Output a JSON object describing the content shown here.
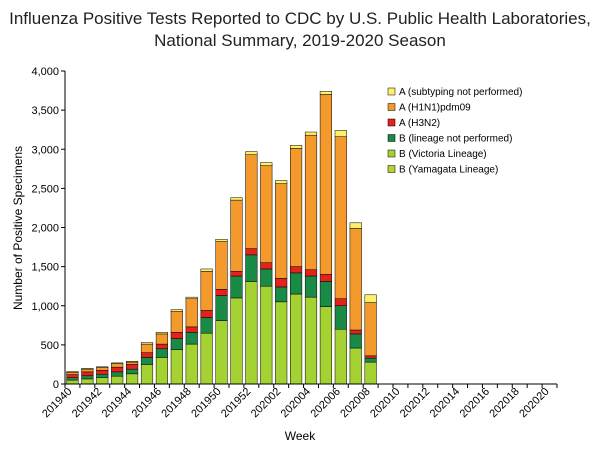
{
  "chart_data": {
    "type": "bar",
    "stacked": true,
    "title_lines": [
      "Influenza Positive Tests Reported to CDC by U.S. Public Health Laboratories,",
      "National Summary, 2019-2020 Season"
    ],
    "xlabel": "Week",
    "ylabel": "Number of Positive Specimens",
    "ylim": [
      0,
      4000
    ],
    "yticks": [
      0,
      500,
      1000,
      1500,
      2000,
      2500,
      3000,
      3500,
      4000
    ],
    "ytick_labels": [
      "0",
      "500",
      "1,000",
      "1,500",
      "2,000",
      "2,500",
      "3,000",
      "3,500",
      "4,000"
    ],
    "categories": [
      "201940",
      "201941",
      "201942",
      "201943",
      "201944",
      "201945",
      "201946",
      "201947",
      "201948",
      "201949",
      "201950",
      "201951",
      "201952",
      "202001",
      "202002",
      "202003",
      "202004",
      "202005",
      "202006",
      "202007",
      "202008",
      "202009",
      "202010",
      "202011",
      "202012",
      "202013",
      "202014",
      "202015",
      "202016",
      "202017",
      "202018",
      "202019",
      "202020"
    ],
    "xtick_labels": [
      "201940",
      "201942",
      "201944",
      "201946",
      "201948",
      "201950",
      "201952",
      "202002",
      "202004",
      "202006",
      "202008",
      "202010",
      "202012",
      "202014",
      "202016",
      "202018",
      "202020"
    ],
    "legend_position": "top-right",
    "series": [
      {
        "name": "B (Yamagata Lineage)",
        "color": "#b5d334",
        "values": [
          0,
          0,
          0,
          0,
          0,
          0,
          0,
          0,
          0,
          0,
          0,
          0,
          0,
          0,
          0,
          0,
          0,
          0,
          0,
          0,
          0,
          0,
          0,
          0,
          0,
          0,
          0,
          0,
          0,
          0,
          0,
          0,
          0
        ]
      },
      {
        "name": "B (Victoria Lineage)",
        "color": "#a4d233",
        "values": [
          50,
          65,
          80,
          100,
          130,
          250,
          340,
          440,
          510,
          650,
          810,
          1100,
          1310,
          1250,
          1050,
          1150,
          1110,
          990,
          700,
          460,
          280,
          0,
          0,
          0,
          0,
          0,
          0,
          0,
          0,
          0,
          0,
          0,
          0
        ]
      },
      {
        "name": "B (lineage not performed)",
        "color": "#1a8a47",
        "values": [
          30,
          40,
          45,
          55,
          60,
          90,
          110,
          140,
          150,
          200,
          320,
          280,
          340,
          220,
          190,
          270,
          270,
          320,
          300,
          180,
          50,
          0,
          0,
          0,
          0,
          0,
          0,
          0,
          0,
          0,
          0,
          0,
          0
        ]
      },
      {
        "name": "A (H3N2)",
        "color": "#e4211a",
        "values": [
          40,
          50,
          50,
          60,
          60,
          60,
          60,
          80,
          70,
          90,
          80,
          60,
          80,
          80,
          110,
          80,
          80,
          90,
          90,
          50,
          30,
          0,
          0,
          0,
          0,
          0,
          0,
          0,
          0,
          0,
          0,
          0,
          0
        ]
      },
      {
        "name": "A (H1N1)pdm09",
        "color": "#f49a2c",
        "values": [
          30,
          35,
          35,
          45,
          30,
          110,
          130,
          270,
          360,
          500,
          610,
          910,
          1200,
          1240,
          1210,
          1510,
          1720,
          2300,
          2070,
          1300,
          680,
          0,
          0,
          0,
          0,
          0,
          0,
          0,
          0,
          0,
          0,
          0,
          0
        ]
      },
      {
        "name": "A (subtyping not performed)",
        "color": "#fff06a",
        "values": [
          10,
          10,
          10,
          10,
          10,
          20,
          20,
          20,
          20,
          30,
          30,
          30,
          40,
          40,
          40,
          40,
          40,
          40,
          80,
          70,
          100,
          0,
          0,
          0,
          0,
          0,
          0,
          0,
          0,
          0,
          0,
          0,
          0
        ]
      }
    ]
  }
}
